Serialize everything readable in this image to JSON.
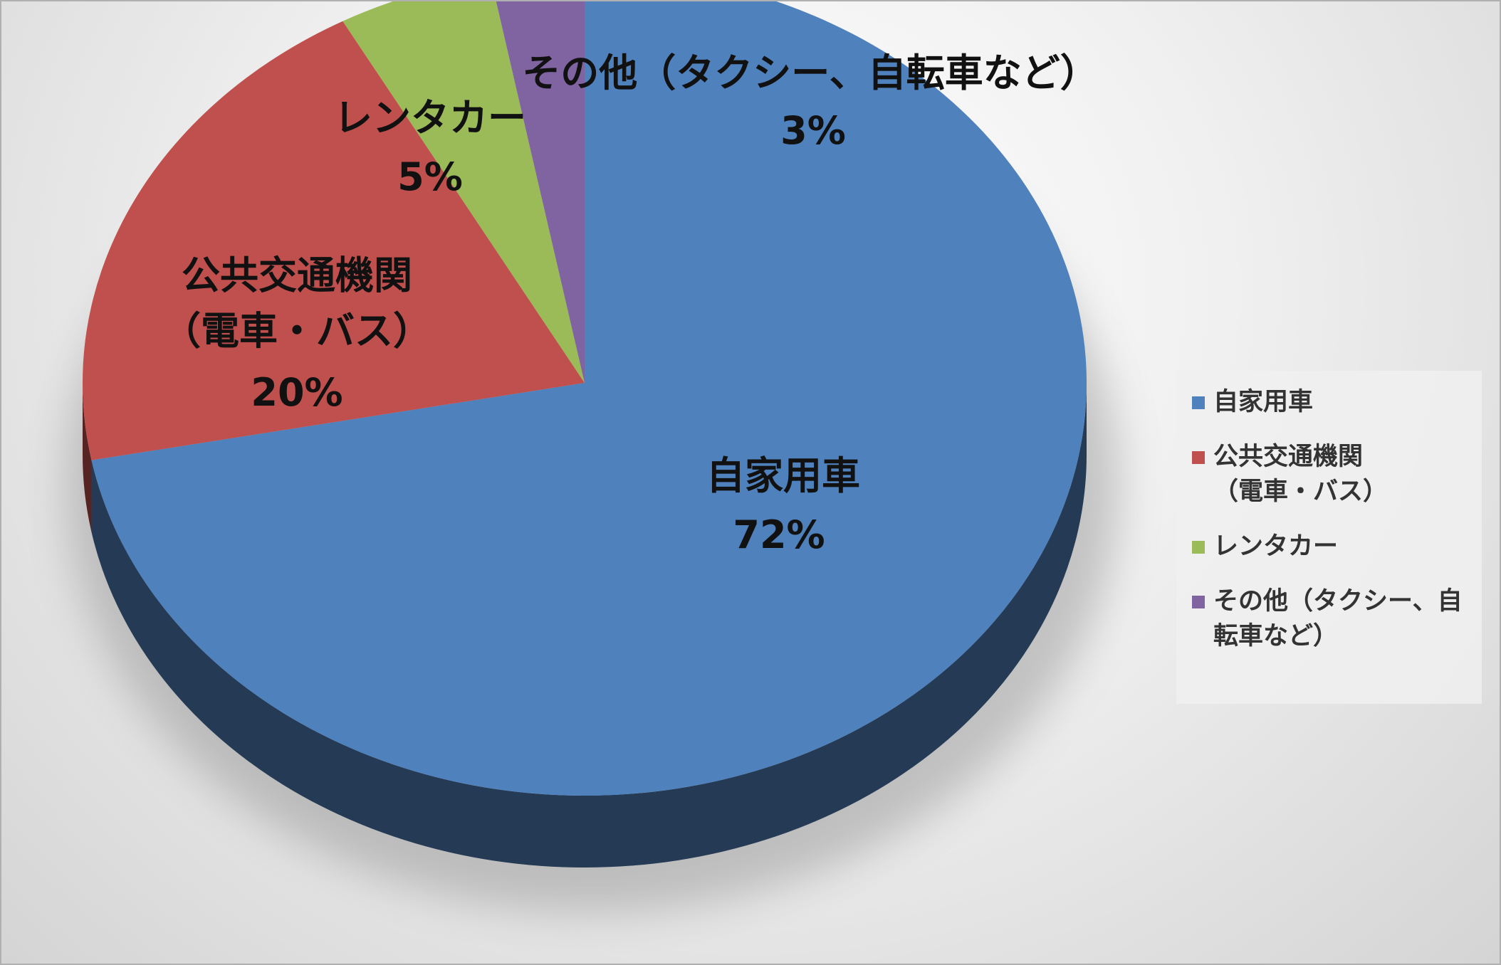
{
  "chart_data": {
    "type": "pie",
    "categories": [
      "自家用車",
      "公共交通機関（電車・バス）",
      "レンタカー",
      "その他（タクシー、自転車など）"
    ],
    "values": [
      72,
      20,
      5,
      3
    ],
    "value_labels": [
      "72%",
      "20%",
      "5%",
      "3%"
    ],
    "colors": [
      "#4f81bd",
      "#c0504d",
      "#9bbb59",
      "#8064a2"
    ],
    "legend": "right"
  }
}
